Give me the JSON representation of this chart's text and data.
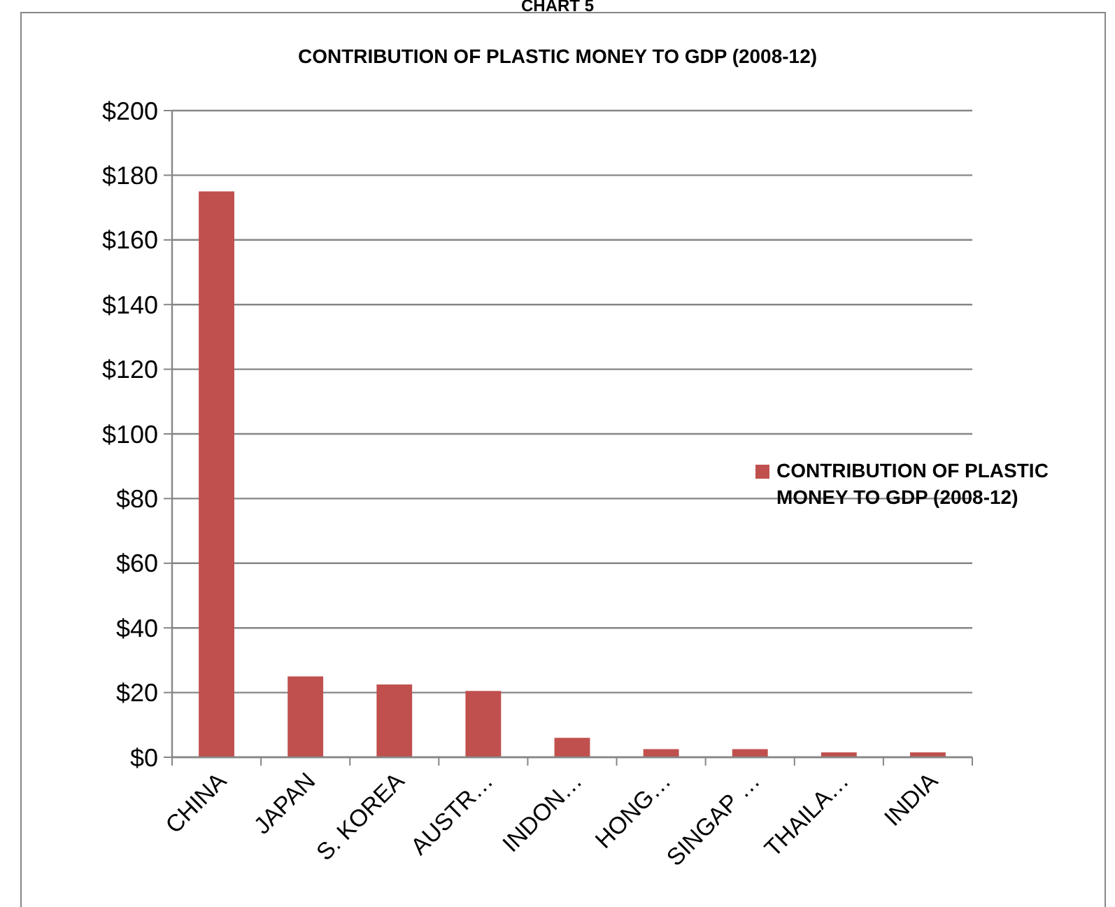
{
  "chart_data": {
    "type": "bar",
    "title": "CONTRIBUTION OF PLASTIC MONEY TO GDP (2008-12)",
    "annotations": [
      "CHART 5"
    ],
    "categories": [
      "CHINA",
      "JAPAN",
      "S. KOREA",
      "AUSTR…",
      "INDON…",
      "HONG…",
      "SINGAP …",
      "THAILA…",
      "INDIA"
    ],
    "series": [
      {
        "name": "CONTRIBUTION OF PLASTIC MONEY TO GDP (2008-12)",
        "color": "#c0504d",
        "values": [
          175,
          25,
          22.5,
          20.5,
          6,
          2.5,
          2.5,
          1.5,
          1.5
        ]
      }
    ],
    "ylim": [
      0,
      200
    ],
    "yticks": [
      {
        "value": 0,
        "label": "$0"
      },
      {
        "value": 20,
        "label": "$20"
      },
      {
        "value": 40,
        "label": "$40"
      },
      {
        "value": 60,
        "label": "$60"
      },
      {
        "value": 80,
        "label": "$80"
      },
      {
        "value": 100,
        "label": "$100"
      },
      {
        "value": 120,
        "label": "$120"
      },
      {
        "value": 140,
        "label": "$140"
      },
      {
        "value": 160,
        "label": "$160"
      },
      {
        "value": 180,
        "label": "$180"
      },
      {
        "value": 200,
        "label": "$200"
      }
    ],
    "grid": "y",
    "legend": "right"
  }
}
